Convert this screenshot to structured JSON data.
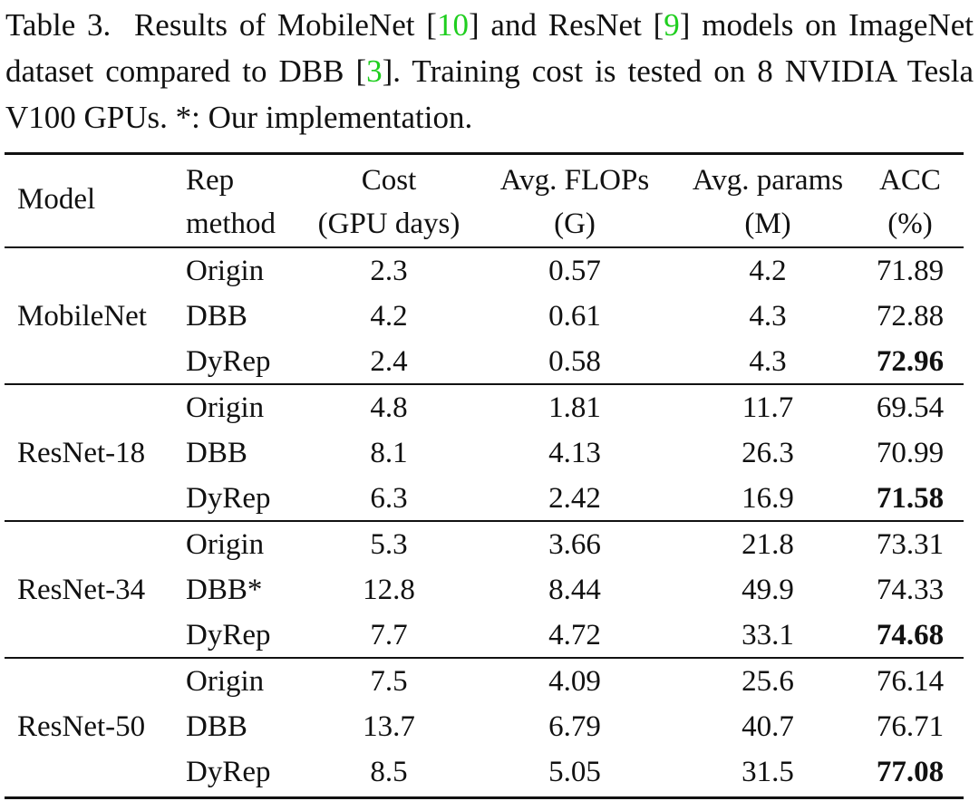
{
  "caption": {
    "label": "Table 3.",
    "text_a": "Results of MobileNet [",
    "ref_a": "10",
    "text_b": "] and ResNet [",
    "ref_b": "9",
    "text_c": "] models on ImageNet dataset compared to DBB [",
    "ref_c": "3",
    "text_d": "]. Training cost is tested on 8 NVIDIA Tesla V100 GPUs. *: Our implementation."
  },
  "colors": {
    "reference_link": "#1fce1f",
    "text": "#111111"
  },
  "header": {
    "model": "Model",
    "rep_line1": "Rep",
    "rep_line2": "method",
    "cost_line1": "Cost",
    "cost_line2": "(GPU days)",
    "flops_line1": "Avg. FLOPs",
    "flops_line2": "(G)",
    "params_line1": "Avg. params",
    "params_line2": "(M)",
    "acc_line1": "ACC",
    "acc_line2": "(%)"
  },
  "groups": [
    {
      "model": "MobileNet",
      "rows": [
        {
          "method": "Origin",
          "cost": "2.3",
          "flops": "0.57",
          "params": "4.2",
          "acc": "71.89",
          "best": false
        },
        {
          "method": "DBB",
          "cost": "4.2",
          "flops": "0.61",
          "params": "4.3",
          "acc": "72.88",
          "best": false
        },
        {
          "method": "DyRep",
          "cost": "2.4",
          "flops": "0.58",
          "params": "4.3",
          "acc": "72.96",
          "best": true
        }
      ]
    },
    {
      "model": "ResNet-18",
      "rows": [
        {
          "method": "Origin",
          "cost": "4.8",
          "flops": "1.81",
          "params": "11.7",
          "acc": "69.54",
          "best": false
        },
        {
          "method": "DBB",
          "cost": "8.1",
          "flops": "4.13",
          "params": "26.3",
          "acc": "70.99",
          "best": false
        },
        {
          "method": "DyRep",
          "cost": "6.3",
          "flops": "2.42",
          "params": "16.9",
          "acc": "71.58",
          "best": true
        }
      ]
    },
    {
      "model": "ResNet-34",
      "rows": [
        {
          "method": "Origin",
          "cost": "5.3",
          "flops": "3.66",
          "params": "21.8",
          "acc": "73.31",
          "best": false
        },
        {
          "method": "DBB*",
          "cost": "12.8",
          "flops": "8.44",
          "params": "49.9",
          "acc": "74.33",
          "best": false
        },
        {
          "method": "DyRep",
          "cost": "7.7",
          "flops": "4.72",
          "params": "33.1",
          "acc": "74.68",
          "best": true
        }
      ]
    },
    {
      "model": "ResNet-50",
      "rows": [
        {
          "method": "Origin",
          "cost": "7.5",
          "flops": "4.09",
          "params": "25.6",
          "acc": "76.14",
          "best": false
        },
        {
          "method": "DBB",
          "cost": "13.7",
          "flops": "6.79",
          "params": "40.7",
          "acc": "76.71",
          "best": false
        },
        {
          "method": "DyRep",
          "cost": "8.5",
          "flops": "5.05",
          "params": "31.5",
          "acc": "77.08",
          "best": true
        }
      ]
    }
  ]
}
